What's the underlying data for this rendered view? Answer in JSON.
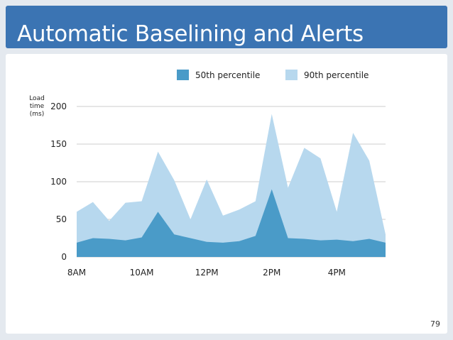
{
  "slide": {
    "title": "Automatic Baselining and Alerts",
    "page_number": "79"
  },
  "colors": {
    "header_bg": "#3b74b3",
    "p50": "#4a9bc8",
    "p90": "#b7d8ee",
    "gridline": "#bdbdbd",
    "text": "#222222"
  },
  "chart_data": {
    "type": "area",
    "title": "",
    "xlabel": "",
    "ylabel": "Load time (ms)",
    "ylabel_lines": [
      "Load",
      "time",
      "(ms)"
    ],
    "ylim": [
      0,
      200
    ],
    "yticks": [
      0,
      50,
      100,
      150,
      200
    ],
    "xticks": [
      "8AM",
      "10AM",
      "12PM",
      "2PM",
      "4PM"
    ],
    "xtick_positions": [
      0,
      4,
      8,
      12,
      16
    ],
    "grid": true,
    "legend_position": "top",
    "x": [
      0,
      1,
      2,
      3,
      4,
      5,
      6,
      7,
      8,
      9,
      10,
      11,
      12,
      13,
      14,
      15,
      16,
      17,
      18,
      19
    ],
    "series": [
      {
        "name": "50th percentile",
        "color": "#4a9bc8",
        "values": [
          19,
          25,
          24,
          22,
          26,
          60,
          30,
          25,
          20,
          19,
          21,
          28,
          90,
          25,
          24,
          22,
          23,
          21,
          24,
          19
        ]
      },
      {
        "name": "90th percentile",
        "color": "#b7d8ee",
        "values": [
          60,
          73,
          48,
          72,
          74,
          140,
          102,
          50,
          103,
          55,
          63,
          74,
          190,
          92,
          145,
          131,
          60,
          165,
          128,
          30
        ]
      }
    ]
  }
}
